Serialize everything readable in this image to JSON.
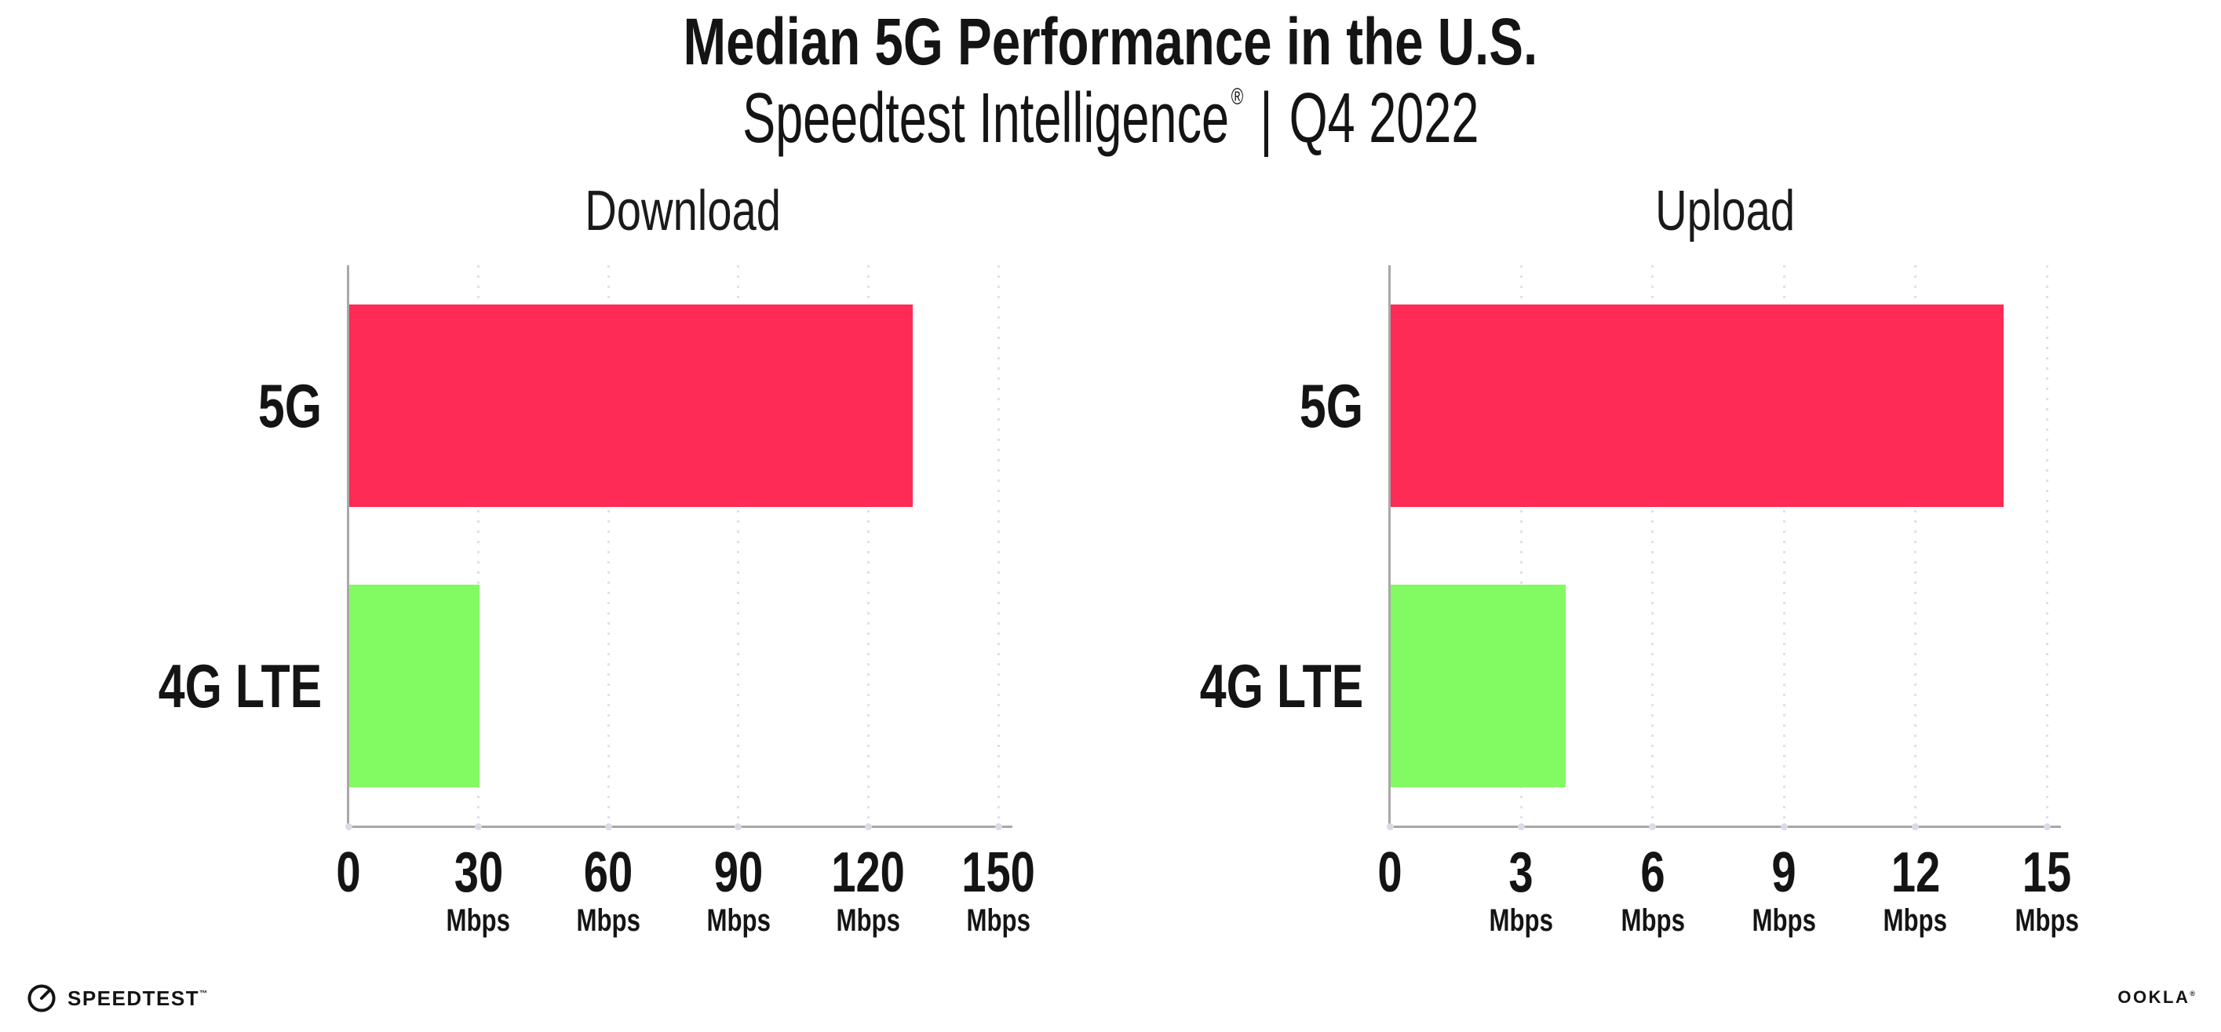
{
  "page": {
    "title": "Median 5G Performance in the U.S.",
    "subtitle_brand": "Speedtest Intelligence",
    "subtitle_reg": "®",
    "subtitle_separator": "|",
    "subtitle_period": "Q4 2022"
  },
  "chart_data": [
    {
      "type": "bar",
      "orientation": "horizontal",
      "title": "Download",
      "categories": [
        "5G",
        "4G LTE"
      ],
      "values": [
        130,
        30
      ],
      "unit": "Mbps",
      "xlim": [
        0,
        150
      ],
      "xticks": [
        0,
        30,
        60,
        90,
        120,
        150
      ],
      "tick_unit_label": "Mbps",
      "bar_colors": [
        "#fd2b55",
        "#82fa62"
      ],
      "grid": "dotted-vertical",
      "legend": "none"
    },
    {
      "type": "bar",
      "orientation": "horizontal",
      "title": "Upload",
      "categories": [
        "5G",
        "4G LTE"
      ],
      "values": [
        14,
        4
      ],
      "unit": "Mbps",
      "xlim": [
        0,
        15
      ],
      "xticks": [
        0,
        3,
        6,
        9,
        12,
        15
      ],
      "tick_unit_label": "Mbps",
      "bar_colors": [
        "#fd2b55",
        "#82fa62"
      ],
      "grid": "dotted-vertical",
      "legend": "none"
    }
  ],
  "footer": {
    "speedtest_logo_text": "SPEEDTEST",
    "speedtest_tm": "™",
    "speedtest_icon": "speedometer-gauge-icon",
    "ookla_logo_text": "OOKLA",
    "ookla_reg": "®"
  },
  "colors": {
    "bar_5g": "#fd2b55",
    "bar_4g_lte": "#82fa62",
    "axis": "#a8a8a8",
    "gridline": "#e0e0ea",
    "tick_dot": "#d8dcea",
    "text": "#141414"
  }
}
